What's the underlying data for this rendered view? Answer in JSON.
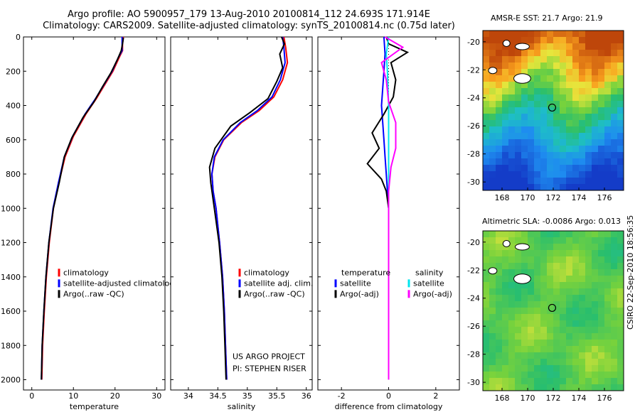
{
  "header": {
    "title_line1": "Argo profile: AO 5900957_179 13-Aug-2010 20100814_112 24.693S 171.914E",
    "title_line2": "Climatology: CARS2009. Satellite-adjusted climatology: synTS_20100814.nc (0.75d later)"
  },
  "chart_data": [
    {
      "type": "line",
      "id": "temperature",
      "xlabel": "temperature",
      "ylabel": "",
      "xlim": [
        -2,
        32
      ],
      "ylim": [
        2060,
        0
      ],
      "xticks": [
        0,
        10,
        20,
        30
      ],
      "yticks": [
        0,
        200,
        400,
        600,
        800,
        1000,
        1200,
        1400,
        1600,
        1800,
        2000
      ],
      "legend": [
        "climatology",
        "satellite-adjusted climatology",
        "Argo(..raw -QC)"
      ],
      "series": [
        {
          "name": "climatology",
          "color": "#ff0000",
          "points": [
            [
              22,
              0
            ],
            [
              21.8,
              40
            ],
            [
              21.8,
              80
            ],
            [
              21,
              120
            ],
            [
              19.5,
              200
            ],
            [
              17.5,
              280
            ],
            [
              15.5,
              360
            ],
            [
              13,
              450
            ],
            [
              10,
              580
            ],
            [
              8,
              700
            ],
            [
              6.5,
              850
            ],
            [
              5.2,
              1000
            ],
            [
              4.2,
              1200
            ],
            [
              3.5,
              1400
            ],
            [
              3,
              1600
            ],
            [
              2.6,
              1800
            ],
            [
              2.4,
              2000
            ]
          ]
        },
        {
          "name": "satellite-adjusted climatology",
          "color": "#0000ff",
          "points": [
            [
              21.7,
              0
            ],
            [
              21.7,
              40
            ],
            [
              21.7,
              80
            ],
            [
              20.8,
              120
            ],
            [
              19.3,
              200
            ],
            [
              17.3,
              280
            ],
            [
              15.3,
              360
            ],
            [
              12.8,
              450
            ],
            [
              9.8,
              580
            ],
            [
              7.8,
              700
            ],
            [
              6.4,
              850
            ],
            [
              5.1,
              1000
            ],
            [
              4.1,
              1200
            ],
            [
              3.4,
              1400
            ],
            [
              2.9,
              1600
            ],
            [
              2.5,
              1800
            ],
            [
              2.3,
              2000
            ]
          ]
        },
        {
          "name": "Argo(..raw -QC)",
          "color": "#000000",
          "points": [
            [
              22,
              5
            ],
            [
              21.8,
              40
            ],
            [
              21.5,
              80
            ],
            [
              20.6,
              130
            ],
            [
              19,
              210
            ],
            [
              17,
              290
            ],
            [
              14.9,
              380
            ],
            [
              12.3,
              470
            ],
            [
              9.6,
              590
            ],
            [
              7.8,
              700
            ],
            [
              6.6,
              850
            ],
            [
              5.2,
              1000
            ],
            [
              4.1,
              1200
            ],
            [
              3.4,
              1400
            ],
            [
              2.9,
              1600
            ],
            [
              2.5,
              1800
            ],
            [
              2.3,
              2000
            ]
          ]
        }
      ]
    },
    {
      "type": "line",
      "id": "salinity",
      "xlabel": "salinity",
      "xlim": [
        33.7,
        36.1
      ],
      "ylim": [
        2060,
        0
      ],
      "xticks": [
        34,
        34.5,
        35,
        35.5,
        36
      ],
      "xticklabels": [
        "34",
        "34.5",
        "35",
        "35.5",
        "36"
      ],
      "legend": [
        "climatology",
        "satellite adj. clim.",
        "Argo(..raw -QC)"
      ],
      "series": [
        {
          "name": "climatology",
          "color": "#ff0000",
          "points": [
            [
              35.62,
              0
            ],
            [
              35.65,
              60
            ],
            [
              35.68,
              150
            ],
            [
              35.6,
              250
            ],
            [
              35.45,
              350
            ],
            [
              35.2,
              430
            ],
            [
              34.9,
              500
            ],
            [
              34.6,
              600
            ],
            [
              34.45,
              700
            ],
            [
              34.4,
              800
            ],
            [
              34.42,
              900
            ],
            [
              34.47,
              1000
            ],
            [
              34.53,
              1200
            ],
            [
              34.58,
              1400
            ],
            [
              34.61,
              1600
            ],
            [
              34.63,
              1800
            ],
            [
              34.65,
              2000
            ]
          ]
        },
        {
          "name": "satellite adj. clim.",
          "color": "#0000ff",
          "points": [
            [
              35.6,
              0
            ],
            [
              35.62,
              60
            ],
            [
              35.64,
              150
            ],
            [
              35.56,
              250
            ],
            [
              35.42,
              350
            ],
            [
              35.17,
              430
            ],
            [
              34.88,
              500
            ],
            [
              34.59,
              600
            ],
            [
              34.44,
              700
            ],
            [
              34.4,
              800
            ],
            [
              34.42,
              900
            ],
            [
              34.47,
              1000
            ],
            [
              34.53,
              1200
            ],
            [
              34.58,
              1400
            ],
            [
              34.61,
              1600
            ],
            [
              34.63,
              1800
            ],
            [
              34.65,
              2000
            ]
          ]
        },
        {
          "name": "Argo(..raw -QC)",
          "color": "#000000",
          "points": [
            [
              35.58,
              0
            ],
            [
              35.63,
              40
            ],
            [
              35.55,
              100
            ],
            [
              35.6,
              180
            ],
            [
              35.5,
              260
            ],
            [
              35.35,
              360
            ],
            [
              35.05,
              440
            ],
            [
              34.72,
              520
            ],
            [
              34.45,
              650
            ],
            [
              34.36,
              760
            ],
            [
              34.38,
              850
            ],
            [
              34.44,
              1000
            ],
            [
              34.52,
              1200
            ],
            [
              34.57,
              1400
            ],
            [
              34.6,
              1600
            ],
            [
              34.62,
              1800
            ],
            [
              34.64,
              2000
            ]
          ]
        }
      ],
      "annotation_line1": "US ARGO PROJECT",
      "annotation_line2": "PI: STEPHEN RISER"
    },
    {
      "type": "line",
      "id": "difference",
      "xlabel": "difference from climatology",
      "xlim": [
        -3,
        3
      ],
      "ylim": [
        2060,
        0
      ],
      "xticks": [
        -2,
        0,
        2
      ],
      "legend_temperature_header": "temperature",
      "legend_salinity_header": "salinity",
      "legend": [
        "satellite",
        "Argo(-adj)",
        "satellite",
        "Argo(-adj)"
      ],
      "series": [
        {
          "name": "temperature satellite",
          "color": "#0000ff",
          "points": [
            [
              -0.2,
              0
            ],
            [
              -0.15,
              100
            ],
            [
              -0.2,
              200
            ],
            [
              -0.25,
              300
            ],
            [
              -0.3,
              400
            ],
            [
              -0.25,
              500
            ],
            [
              -0.2,
              600
            ],
            [
              -0.15,
              700
            ],
            [
              -0.1,
              800
            ],
            [
              -0.05,
              900
            ],
            [
              0,
              1000
            ],
            [
              0,
              1200
            ],
            [
              0,
              1400
            ],
            [
              0,
              1600
            ],
            [
              0,
              1800
            ],
            [
              0,
              2000
            ]
          ]
        },
        {
          "name": "temperature Argo(-adj)",
          "color": "#000000",
          "points": [
            [
              -0.1,
              0
            ],
            [
              0,
              40
            ],
            [
              0.8,
              90
            ],
            [
              0.1,
              150
            ],
            [
              0.3,
              250
            ],
            [
              0.2,
              350
            ],
            [
              -0.2,
              450
            ],
            [
              -0.7,
              560
            ],
            [
              -0.4,
              650
            ],
            [
              -0.9,
              740
            ],
            [
              -0.3,
              830
            ],
            [
              -0.1,
              900
            ],
            [
              0,
              1000
            ],
            [
              0,
              1200
            ],
            [
              0,
              1400
            ],
            [
              0,
              1600
            ],
            [
              0,
              1800
            ],
            [
              0,
              2000
            ]
          ]
        },
        {
          "name": "salinity satellite",
          "color": "#00e5ee",
          "points": [
            [
              0,
              0
            ],
            [
              -0.1,
              100
            ],
            [
              -0.05,
              200
            ],
            [
              0,
              400
            ],
            [
              0,
              800
            ],
            [
              0,
              1200
            ],
            [
              0,
              1600
            ],
            [
              0,
              2000
            ]
          ]
        },
        {
          "name": "salinity Argo(-adj)",
          "color": "#ff00ff",
          "points": [
            [
              -0.15,
              0
            ],
            [
              0.6,
              60
            ],
            [
              -0.3,
              150
            ],
            [
              -0.1,
              250
            ],
            [
              0,
              380
            ],
            [
              0.3,
              500
            ],
            [
              0.3,
              650
            ],
            [
              0.1,
              760
            ],
            [
              0,
              900
            ],
            [
              0,
              1200
            ],
            [
              0,
              1600
            ],
            [
              0,
              2000
            ]
          ]
        }
      ]
    },
    {
      "type": "heatmap",
      "id": "sst-map",
      "title": "AMSR-E SST: 21.7 Argo: 21.9",
      "xticks": [
        168,
        170,
        172,
        174,
        176
      ],
      "yticks": [
        -20,
        -22,
        -24,
        -26,
        -28,
        -30
      ],
      "xlim": [
        166.5,
        177.5
      ],
      "ylim": [
        -30.6,
        -19.2
      ],
      "marker": [
        171.914,
        -24.693
      ]
    },
    {
      "type": "heatmap",
      "id": "sla-map",
      "title": "Altimetric SLA: -0.0086 Argo: 0.013",
      "xticks": [
        168,
        170,
        172,
        174,
        176
      ],
      "yticks": [
        -20,
        -22,
        -24,
        -26,
        -28,
        -30
      ],
      "xlim": [
        166.5,
        177.5
      ],
      "ylim": [
        -30.6,
        -19.2
      ],
      "marker": [
        171.914,
        -24.693
      ]
    }
  ],
  "footer": {
    "stamp": "CSIRO 22-Sep-2010 18:56:35"
  }
}
